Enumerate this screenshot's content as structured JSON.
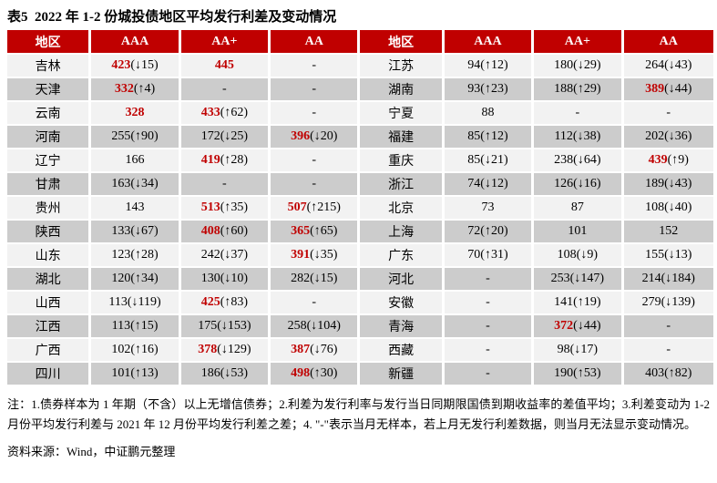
{
  "title": "表5  2022 年 1-2 份城投债地区平均发行利差及变动情况",
  "colors": {
    "header_bg": "#c00000",
    "red_text": "#c00000",
    "row_light": "#f2f2f2",
    "row_dark": "#cccccc"
  },
  "table": {
    "header": [
      "地区",
      "AAA",
      "AA+",
      "AA",
      "地区",
      "AAA",
      "AA+",
      "AA"
    ],
    "rows": [
      {
        "left": {
          "region": "吉林",
          "cells": [
            {
              "m": "423",
              "c": "(↓15)",
              "red": true
            },
            {
              "m": "445",
              "red": true
            },
            {
              "m": "-"
            }
          ]
        },
        "right": {
          "region": "江苏",
          "cells": [
            {
              "m": "94",
              "c": "(↑12)"
            },
            {
              "m": "180",
              "c": "(↓29)"
            },
            {
              "m": "264",
              "c": "(↓43)"
            }
          ]
        }
      },
      {
        "left": {
          "region": "天津",
          "cells": [
            {
              "m": "332",
              "c": "(↑4)",
              "red": true
            },
            {
              "m": "-"
            },
            {
              "m": "-"
            }
          ]
        },
        "right": {
          "region": "湖南",
          "cells": [
            {
              "m": "93",
              "c": "(↑23)"
            },
            {
              "m": "188",
              "c": "(↑29)"
            },
            {
              "m": "389",
              "c": "(↓44)",
              "red": true
            }
          ]
        }
      },
      {
        "left": {
          "region": "云南",
          "cells": [
            {
              "m": "328",
              "red": true
            },
            {
              "m": "433",
              "c": "(↑62)",
              "red": true
            },
            {
              "m": "-"
            }
          ]
        },
        "right": {
          "region": "宁夏",
          "cells": [
            {
              "m": "88"
            },
            {
              "m": "-"
            },
            {
              "m": "-"
            }
          ]
        }
      },
      {
        "left": {
          "region": "河南",
          "cells": [
            {
              "m": "255",
              "c": "(↑90)"
            },
            {
              "m": "172",
              "c": "(↓25)"
            },
            {
              "m": "396",
              "c": "(↓20)",
              "red": true
            }
          ]
        },
        "right": {
          "region": "福建",
          "cells": [
            {
              "m": "85",
              "c": "(↑12)"
            },
            {
              "m": "112",
              "c": "(↓38)"
            },
            {
              "m": "202",
              "c": "(↓36)"
            }
          ]
        }
      },
      {
        "left": {
          "region": "辽宁",
          "cells": [
            {
              "m": "166"
            },
            {
              "m": "419",
              "c": "(↑28)",
              "red": true
            },
            {
              "m": "-"
            }
          ]
        },
        "right": {
          "region": "重庆",
          "cells": [
            {
              "m": "85",
              "c": "(↓21)"
            },
            {
              "m": "238",
              "c": "(↓64)"
            },
            {
              "m": "439",
              "c": "(↑9)",
              "red": true
            }
          ]
        }
      },
      {
        "left": {
          "region": "甘肃",
          "cells": [
            {
              "m": "163",
              "c": "(↓34)"
            },
            {
              "m": "-"
            },
            {
              "m": "-"
            }
          ]
        },
        "right": {
          "region": "浙江",
          "cells": [
            {
              "m": "74",
              "c": "(↓12)"
            },
            {
              "m": "126",
              "c": "(↓16)"
            },
            {
              "m": "189",
              "c": "(↓43)"
            }
          ]
        }
      },
      {
        "left": {
          "region": "贵州",
          "cells": [
            {
              "m": "143"
            },
            {
              "m": "513",
              "c": "(↑35)",
              "red": true
            },
            {
              "m": "507",
              "c": "(↑215)",
              "red": true
            }
          ]
        },
        "right": {
          "region": "北京",
          "cells": [
            {
              "m": "73"
            },
            {
              "m": "87"
            },
            {
              "m": "108",
              "c": "(↓40)"
            }
          ]
        }
      },
      {
        "left": {
          "region": "陕西",
          "cells": [
            {
              "m": "133",
              "c": "(↓67)"
            },
            {
              "m": "408",
              "c": "(↑60)",
              "red": true
            },
            {
              "m": "365",
              "c": "(↑65)",
              "red": true
            }
          ]
        },
        "right": {
          "region": "上海",
          "cells": [
            {
              "m": "72",
              "c": "(↑20)"
            },
            {
              "m": "101"
            },
            {
              "m": "152"
            }
          ]
        }
      },
      {
        "left": {
          "region": "山东",
          "cells": [
            {
              "m": "123",
              "c": "(↑28)"
            },
            {
              "m": "242",
              "c": "(↓37)"
            },
            {
              "m": "391",
              "c": "(↓35)",
              "red": true
            }
          ]
        },
        "right": {
          "region": "广东",
          "cells": [
            {
              "m": "70",
              "c": "(↑31)"
            },
            {
              "m": "108",
              "c": "(↓9)"
            },
            {
              "m": "155",
              "c": "(↓13)"
            }
          ]
        }
      },
      {
        "left": {
          "region": "湖北",
          "cells": [
            {
              "m": "120",
              "c": "(↑34)"
            },
            {
              "m": "130",
              "c": "(↓10)"
            },
            {
              "m": "282",
              "c": "(↓15)"
            }
          ]
        },
        "right": {
          "region": "河北",
          "cells": [
            {
              "m": "-"
            },
            {
              "m": "253",
              "c": "(↓147)"
            },
            {
              "m": "214",
              "c": "(↓184)"
            }
          ]
        }
      },
      {
        "left": {
          "region": "山西",
          "cells": [
            {
              "m": "113",
              "c": "(↓119)"
            },
            {
              "m": "425",
              "c": "(↑83)",
              "red": true
            },
            {
              "m": "-"
            }
          ]
        },
        "right": {
          "region": "安徽",
          "cells": [
            {
              "m": "-"
            },
            {
              "m": "141",
              "c": "(↑19)"
            },
            {
              "m": "279",
              "c": "(↓139)"
            }
          ]
        }
      },
      {
        "left": {
          "region": "江西",
          "cells": [
            {
              "m": "113",
              "c": "(↑15)"
            },
            {
              "m": "175",
              "c": "(↓153)"
            },
            {
              "m": "258",
              "c": "(↓104)"
            }
          ]
        },
        "right": {
          "region": "青海",
          "cells": [
            {
              "m": "-"
            },
            {
              "m": "372",
              "c": "(↓44)",
              "red": true
            },
            {
              "m": "-"
            }
          ]
        }
      },
      {
        "left": {
          "region": "广西",
          "cells": [
            {
              "m": "102",
              "c": "(↑16)"
            },
            {
              "m": "378",
              "c": "(↓129)",
              "red": true
            },
            {
              "m": "387",
              "c": "(↓76)",
              "red": true
            }
          ]
        },
        "right": {
          "region": "西藏",
          "cells": [
            {
              "m": "-"
            },
            {
              "m": "98",
              "c": "(↓17)"
            },
            {
              "m": "-"
            }
          ]
        }
      },
      {
        "left": {
          "region": "四川",
          "cells": [
            {
              "m": "101",
              "c": "(↑13)"
            },
            {
              "m": "186",
              "c": "(↓53)"
            },
            {
              "m": "498",
              "c": "(↑30)",
              "red": true
            }
          ]
        },
        "right": {
          "region": "新疆",
          "cells": [
            {
              "m": "-"
            },
            {
              "m": "190",
              "c": "(↑53)"
            },
            {
              "m": "403",
              "c": "(↑82)"
            }
          ]
        }
      }
    ]
  },
  "notes": "注：1.债券样本为 1 年期（不含）以上无增信债券；2.利差为发行利率与发行当日同期限国债到期收益率的差值平均；3.利差变动为 1-2 月份平均发行利差与 2021 年 12 月份平均发行利差之差；4. \"-\"表示当月无样本，若上月无发行利差数据，则当月无法显示变动情况。",
  "source": "资料来源：Wind，中证鹏元整理"
}
